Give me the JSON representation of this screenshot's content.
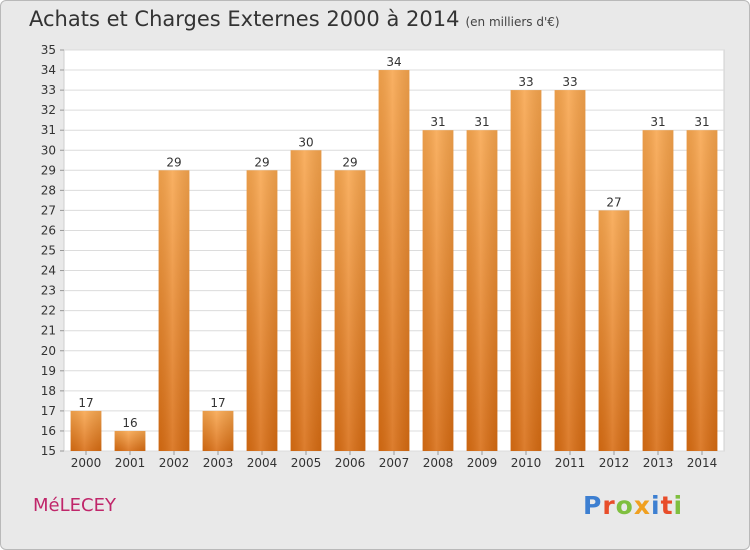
{
  "header": {
    "title": "Achats et Charges Externes 2000 à 2014",
    "subtitle": "(en milliers d'€)"
  },
  "footer": {
    "town": "MéLECEY",
    "logo_letters": [
      "P",
      "r",
      "o",
      "x",
      "i",
      "t",
      "i"
    ],
    "logo_colors": [
      "#3d7fd1",
      "#e84d2a",
      "#7fbf3f",
      "#f0a020",
      "#3d7fd1",
      "#e84d2a",
      "#7fbf3f"
    ]
  },
  "chart_data": {
    "type": "bar",
    "title": "Achats et Charges Externes 2000 à 2014",
    "subtitle": "(en milliers d'€)",
    "categories": [
      "2000",
      "2001",
      "2002",
      "2003",
      "2004",
      "2005",
      "2006",
      "2007",
      "2008",
      "2009",
      "2010",
      "2011",
      "2012",
      "2013",
      "2014"
    ],
    "values": [
      17,
      16,
      29,
      17,
      29,
      30,
      29,
      34,
      31,
      31,
      33,
      33,
      27,
      31,
      31
    ],
    "ylim": [
      15,
      35
    ],
    "yticks": [
      15,
      16,
      17,
      18,
      19,
      20,
      21,
      22,
      23,
      24,
      25,
      26,
      27,
      28,
      29,
      30,
      31,
      32,
      33,
      34,
      35
    ],
    "grid": true,
    "bar_color": "#f08a24"
  }
}
